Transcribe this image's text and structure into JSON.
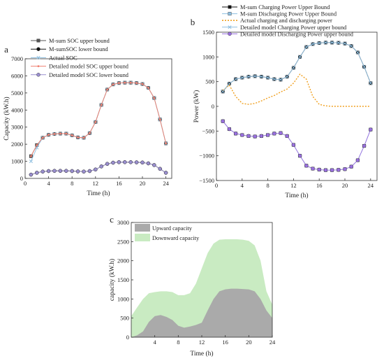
{
  "chart_data": [
    {
      "panel_label": "a",
      "type": "line",
      "xlabel": "Time (h)",
      "ylabel": "Capacity (kW.h)",
      "xlim": [
        0,
        25
      ],
      "ylim": [
        0,
        7000
      ],
      "xticks": [
        0,
        4,
        8,
        12,
        16,
        20,
        24
      ],
      "yticks": [
        0,
        1000,
        2000,
        3000,
        4000,
        5000,
        6000,
        7000
      ],
      "x": [
        1,
        2,
        3,
        4,
        5,
        6,
        7,
        8,
        9,
        10,
        11,
        12,
        13,
        14,
        15,
        16,
        17,
        18,
        19,
        20,
        21,
        22,
        23,
        24
      ],
      "series": [
        {
          "name": "M-sum SOC upper bound",
          "color": "#555555",
          "marker": "square",
          "values": [
            1300,
            1950,
            2380,
            2550,
            2600,
            2620,
            2620,
            2520,
            2400,
            2380,
            2650,
            3300,
            4300,
            5200,
            5500,
            5580,
            5600,
            5600,
            5580,
            5520,
            5300,
            4700,
            3450,
            2050
          ]
        },
        {
          "name": "M-sumSOC lower bound",
          "color": "#111111",
          "marker": "circle",
          "values": [
            220,
            330,
            400,
            430,
            440,
            440,
            440,
            430,
            410,
            400,
            430,
            520,
            700,
            850,
            920,
            950,
            950,
            950,
            940,
            930,
            880,
            780,
            560,
            330
          ]
        },
        {
          "name": "Actual SOC",
          "color": "#8fbfe0",
          "marker": "cross",
          "values": [
            1000,
            1800,
            2380,
            2550,
            2600,
            2620,
            2620,
            2520,
            2400,
            2380,
            2650,
            3300,
            4300,
            5200,
            5500,
            5580,
            5600,
            5600,
            5580,
            5520,
            5300,
            4700,
            3450,
            2050
          ]
        },
        {
          "name": "Detailed model SOC upper bound",
          "color": "#f08070",
          "marker": "dot",
          "values": [
            1300,
            1950,
            2380,
            2550,
            2600,
            2620,
            2620,
            2520,
            2400,
            2380,
            2650,
            3300,
            4300,
            5200,
            5500,
            5580,
            5600,
            5600,
            5580,
            5520,
            5300,
            4700,
            3450,
            2050
          ]
        },
        {
          "name": "Detailed model SOC lower bound",
          "color": "#9a8fcf",
          "marker": "circle",
          "values": [
            220,
            330,
            400,
            430,
            440,
            440,
            440,
            430,
            410,
            400,
            430,
            520,
            700,
            850,
            920,
            950,
            950,
            950,
            940,
            930,
            880,
            780,
            560,
            330
          ]
        }
      ]
    },
    {
      "panel_label": "b",
      "type": "line",
      "xlabel": "Time (h)",
      "ylabel": "Power (kW)",
      "xlim": [
        0,
        25
      ],
      "ylim": [
        -1500,
        1500
      ],
      "xticks": [
        0,
        4,
        8,
        12,
        16,
        20,
        24
      ],
      "yticks": [
        -1500,
        -1000,
        -500,
        0,
        500,
        1000,
        1500
      ],
      "x": [
        1,
        2,
        3,
        4,
        5,
        6,
        7,
        8,
        9,
        10,
        11,
        12,
        13,
        14,
        15,
        16,
        17,
        18,
        19,
        20,
        21,
        22,
        23,
        24
      ],
      "series": [
        {
          "name": "M-sum Charging Power Upper Bound",
          "color": "#111111",
          "marker": "square",
          "values": [
            300,
            460,
            550,
            580,
            600,
            610,
            600,
            580,
            550,
            540,
            600,
            780,
            1000,
            1200,
            1260,
            1280,
            1290,
            1290,
            1285,
            1270,
            1220,
            1090,
            800,
            470
          ]
        },
        {
          "name": "M-sum Discharging Power Upper Bound",
          "color": "#8fbfe0",
          "marker": "square",
          "values": [
            -300,
            -460,
            -550,
            -580,
            -600,
            -610,
            -600,
            -580,
            -550,
            -540,
            -600,
            -780,
            -1000,
            -1200,
            -1260,
            -1280,
            -1290,
            -1290,
            -1285,
            -1270,
            -1220,
            -1090,
            -800,
            -470
          ]
        },
        {
          "name": "Actual charging and discharging power",
          "color": "#f0a020",
          "marker": "none",
          "dashed": true,
          "values": [
            320,
            430,
            200,
            60,
            40,
            60,
            110,
            170,
            220,
            290,
            350,
            470,
            650,
            550,
            200,
            40,
            10,
            0,
            0,
            0,
            0,
            0,
            0,
            0
          ]
        },
        {
          "name": "Detailed model Charging Power upper bound",
          "color": "#8fbfe0",
          "marker": "cross",
          "values": [
            300,
            460,
            550,
            580,
            600,
            610,
            600,
            580,
            550,
            540,
            600,
            780,
            1000,
            1200,
            1260,
            1280,
            1290,
            1290,
            1285,
            1270,
            1220,
            1090,
            800,
            470
          ]
        },
        {
          "name": "Detailed model Discharging Power upper bound",
          "color": "#9a70e0",
          "marker": "circle",
          "values": [
            -300,
            -460,
            -550,
            -580,
            -600,
            -610,
            -600,
            -580,
            -550,
            -540,
            -600,
            -780,
            -1000,
            -1200,
            -1260,
            -1280,
            -1290,
            -1290,
            -1285,
            -1270,
            -1220,
            -1090,
            -800,
            -470
          ]
        }
      ]
    },
    {
      "panel_label": "c",
      "type": "area",
      "xlabel": "Time (h)",
      "ylabel": "capacity (kW.h)",
      "xlim": [
        0,
        24
      ],
      "ylim": [
        0,
        3000
      ],
      "xticks": [
        4,
        8,
        12,
        16,
        20,
        24
      ],
      "yticks": [
        0,
        500,
        1000,
        1500,
        2000,
        2500,
        3000
      ],
      "x": [
        0,
        1,
        2,
        3,
        4,
        5,
        6,
        7,
        8,
        9,
        10,
        11,
        12,
        13,
        14,
        15,
        16,
        17,
        18,
        19,
        20,
        21,
        22,
        23,
        24
      ],
      "series": [
        {
          "name": "Upward capacity",
          "color": "#aaaaaa",
          "values": [
            0,
            50,
            150,
            400,
            550,
            580,
            530,
            450,
            300,
            250,
            280,
            320,
            380,
            700,
            1000,
            1200,
            1250,
            1270,
            1270,
            1260,
            1250,
            1200,
            1000,
            700,
            500
          ]
        },
        {
          "name": "Downward capacity",
          "color": "#c9ebc2",
          "values": [
            550,
            780,
            1000,
            1150,
            1180,
            1200,
            1200,
            1180,
            1100,
            1100,
            1150,
            1400,
            1800,
            2200,
            2450,
            2550,
            2560,
            2560,
            2560,
            2550,
            2520,
            2400,
            2000,
            1200,
            850
          ]
        }
      ]
    }
  ]
}
